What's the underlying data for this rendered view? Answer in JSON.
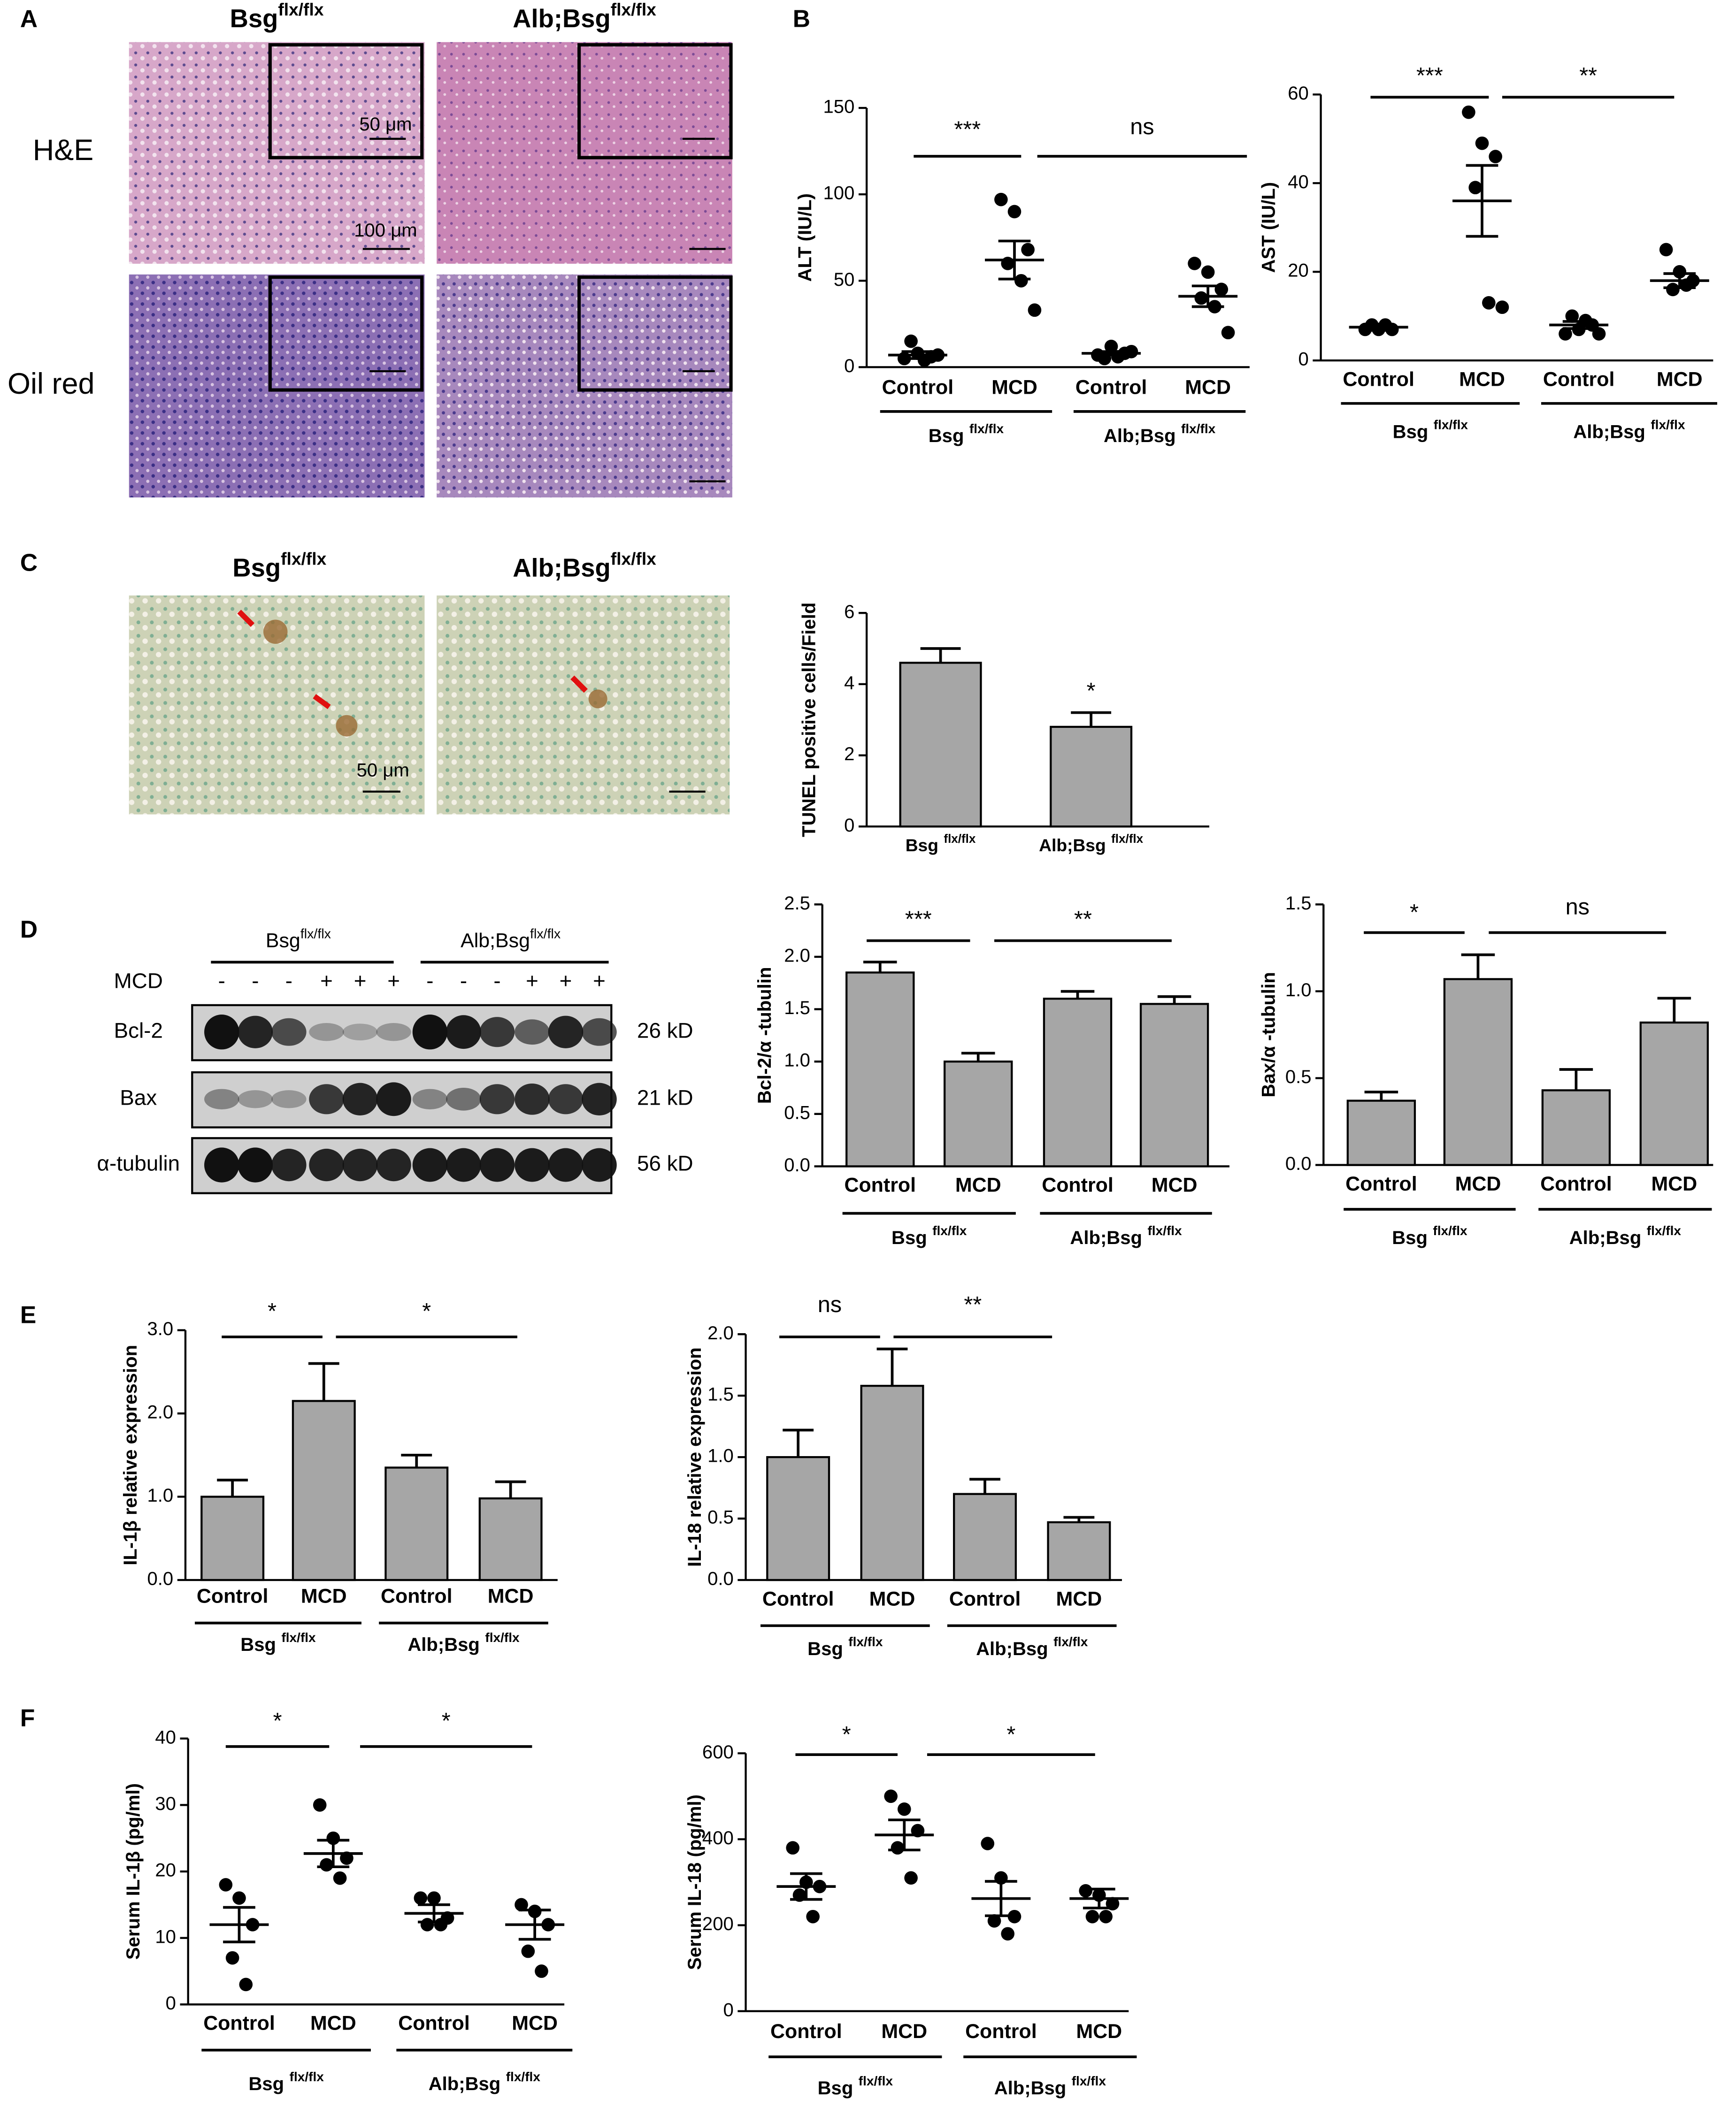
{
  "panels": {
    "A": {
      "label": "A",
      "columns": [
        {
          "name": "Bsg",
          "sup": "flx/flx"
        },
        {
          "name": "Alb;Bsg",
          "sup": "flx/flx"
        }
      ],
      "rows": [
        "H&E",
        "Oil red"
      ],
      "scale_bars": [
        "50 μm",
        "100 μm"
      ]
    },
    "B": {
      "label": "B"
    },
    "C": {
      "label": "C",
      "columns": [
        {
          "name": "Bsg",
          "sup": "flx/flx"
        },
        {
          "name": "Alb;Bsg",
          "sup": "flx/flx"
        }
      ],
      "scale_bar": "50 μm"
    },
    "D": {
      "label": "D",
      "blot": {
        "groups": [
          {
            "name": "Bsg",
            "sup": "flx/flx"
          },
          {
            "name": "Alb;Bsg",
            "sup": "flx/flx"
          }
        ],
        "treatment": "MCD",
        "lanes": [
          "-",
          "-",
          "-",
          "+",
          "+",
          "+",
          "-",
          "-",
          "-",
          "+",
          "+",
          "+"
        ],
        "proteins": [
          {
            "name": "Bcl-2",
            "size": "26 kD"
          },
          {
            "name": "Bax",
            "size": "21 kD"
          },
          {
            "name": "α-tubulin",
            "size": "56 kD"
          }
        ]
      }
    },
    "E": {
      "label": "E"
    },
    "F": {
      "label": "F"
    }
  },
  "chart_data": [
    {
      "type": "scatter",
      "ylabel": "ALT (IU/L)",
      "categories": [
        "Control",
        "MCD",
        "Control",
        "MCD"
      ],
      "groups": [
        {
          "name": "Bsg",
          "sup": "flx/flx"
        },
        {
          "name": "Alb;Bsg",
          "sup": "flx/flx"
        }
      ],
      "points": [
        [
          5,
          8,
          6,
          15,
          4,
          7
        ],
        [
          97,
          90,
          68,
          60,
          50,
          33
        ],
        [
          7,
          12,
          8,
          5,
          6,
          9
        ],
        [
          60,
          55,
          45,
          40,
          35,
          20
        ]
      ],
      "means": [
        7,
        62,
        8,
        41
      ],
      "sems": [
        2,
        11,
        1,
        6
      ],
      "ylim": [
        0,
        150
      ],
      "yticks": [
        0,
        50,
        100,
        150
      ],
      "color": "#000000",
      "significance": [
        "***",
        "ns"
      ]
    },
    {
      "type": "scatter",
      "ylabel": "AST (IU/L)",
      "categories": [
        "Control",
        "MCD",
        "Control",
        "MCD"
      ],
      "groups": [
        {
          "name": "Bsg",
          "sup": "flx/flx"
        },
        {
          "name": "Alb;Bsg",
          "sup": "flx/flx"
        }
      ],
      "points": [
        [
          7,
          7,
          7,
          8,
          8
        ],
        [
          56,
          49,
          46,
          39,
          13,
          12
        ],
        [
          6,
          7,
          8,
          10,
          9,
          6
        ],
        [
          25,
          20,
          18,
          16,
          17
        ]
      ],
      "means": [
        7.5,
        36,
        8,
        18
      ],
      "sems": [
        0.3,
        8,
        0.8,
        1.6
      ],
      "ylim": [
        0,
        60
      ],
      "yticks": [
        0,
        20,
        40,
        60
      ],
      "color": "#000000",
      "significance": [
        "***",
        "**"
      ]
    },
    {
      "type": "bar",
      "ylabel": "TUNEL positive cells/Field",
      "groups": [
        {
          "name": "Bsg",
          "sup": "flx/flx"
        },
        {
          "name": "Alb;Bsg",
          "sup": "flx/flx"
        }
      ],
      "values": [
        4.6,
        2.8
      ],
      "errors": [
        0.4,
        0.4
      ],
      "ylim": [
        0,
        6
      ],
      "yticks": [
        0,
        2,
        4,
        6
      ],
      "color": "#a6a6a6",
      "significance": [
        "*"
      ]
    },
    {
      "type": "bar",
      "ylabel": "Bcl-2/α -tubulin",
      "categories": [
        "Control",
        "MCD",
        "Control",
        "MCD"
      ],
      "groups": [
        {
          "name": "Bsg",
          "sup": "flx/flx"
        },
        {
          "name": "Alb;Bsg",
          "sup": "flx/flx"
        }
      ],
      "values": [
        1.85,
        1.0,
        1.6,
        1.55
      ],
      "errors": [
        0.1,
        0.08,
        0.07,
        0.07
      ],
      "ylim": [
        0,
        2.5
      ],
      "yticks": [
        {
          "value": 0,
          "label": "0.0"
        },
        0.5,
        {
          "value": 1,
          "label": "1.0"
        },
        1.5,
        {
          "value": 2,
          "label": "2.0"
        },
        2.5
      ],
      "color": "#a6a6a6",
      "significance": [
        "***",
        "**"
      ]
    },
    {
      "type": "bar",
      "ylabel": "Bax/α -tubulin",
      "categories": [
        "Control",
        "MCD",
        "Control",
        "MCD"
      ],
      "groups": [
        {
          "name": "Bsg",
          "sup": "flx/flx"
        },
        {
          "name": "Alb;Bsg",
          "sup": "flx/flx"
        }
      ],
      "values": [
        0.37,
        1.07,
        0.43,
        0.82
      ],
      "errors": [
        0.05,
        0.14,
        0.12,
        0.14
      ],
      "ylim": [
        0,
        1.5
      ],
      "yticks": [
        {
          "value": 0,
          "label": "0.0"
        },
        0.5,
        {
          "value": 1,
          "label": "1.0"
        },
        1.5
      ],
      "color": "#a6a6a6",
      "significance": [
        "*",
        "ns"
      ]
    },
    {
      "type": "bar",
      "ylabel": "IL-1β relative expression",
      "categories": [
        "Control",
        "MCD",
        "Control",
        "MCD"
      ],
      "groups": [
        {
          "name": "Bsg",
          "sup": "flx/flx"
        },
        {
          "name": "Alb;Bsg",
          "sup": "flx/flx"
        }
      ],
      "values": [
        1.0,
        2.15,
        1.35,
        0.98
      ],
      "errors": [
        0.2,
        0.45,
        0.15,
        0.2
      ],
      "ylim": [
        0,
        3
      ],
      "yticks": [
        {
          "value": 0,
          "label": "0.0"
        },
        {
          "value": 1,
          "label": "1.0"
        },
        {
          "value": 2,
          "label": "2.0"
        },
        {
          "value": 3,
          "label": "3.0"
        }
      ],
      "color": "#a6a6a6",
      "significance": [
        "*",
        "*"
      ]
    },
    {
      "type": "bar",
      "ylabel": "IL-18 relative expression",
      "categories": [
        "Control",
        "MCD",
        "Control",
        "MCD"
      ],
      "groups": [
        {
          "name": "Bsg",
          "sup": "flx/flx"
        },
        {
          "name": "Alb;Bsg",
          "sup": "flx/flx"
        }
      ],
      "values": [
        1.0,
        1.58,
        0.7,
        0.47
      ],
      "errors": [
        0.22,
        0.3,
        0.12,
        0.04
      ],
      "ylim": [
        0,
        2
      ],
      "yticks": [
        {
          "value": 0,
          "label": "0.0"
        },
        0.5,
        {
          "value": 1,
          "label": "1.0"
        },
        1.5,
        {
          "value": 2,
          "label": "2.0"
        }
      ],
      "color": "#a6a6a6",
      "significance": [
        "ns",
        "**"
      ]
    },
    {
      "type": "scatter",
      "ylabel": "Serum IL-1β (pg/ml)",
      "categories": [
        "Control",
        "MCD",
        "Control",
        "MCD"
      ],
      "groups": [
        {
          "name": "Bsg",
          "sup": "flx/flx"
        },
        {
          "name": "Alb;Bsg",
          "sup": "flx/flx"
        }
      ],
      "points": [
        [
          18,
          16,
          12,
          7,
          3
        ],
        [
          30,
          25,
          22,
          21,
          19
        ],
        [
          16,
          16,
          13,
          12,
          12
        ],
        [
          15,
          14,
          12,
          8,
          5
        ]
      ],
      "means": [
        12,
        22.7,
        13.7,
        12
      ],
      "sems": [
        2.6,
        2,
        1.3,
        2.2
      ],
      "ylim": [
        0,
        40
      ],
      "yticks": [
        0,
        10,
        20,
        30,
        40
      ],
      "color": "#000000",
      "significance": [
        "*",
        "*"
      ]
    },
    {
      "type": "scatter",
      "ylabel": "Serum IL-18 (pg/ml)",
      "categories": [
        "Control",
        "MCD",
        "Control",
        "MCD"
      ],
      "groups": [
        {
          "name": "Bsg",
          "sup": "flx/flx"
        },
        {
          "name": "Alb;Bsg",
          "sup": "flx/flx"
        }
      ],
      "points": [
        [
          380,
          300,
          290,
          270,
          220
        ],
        [
          500,
          470,
          420,
          380,
          310
        ],
        [
          390,
          310,
          220,
          210,
          180
        ],
        [
          280,
          270,
          250,
          220,
          220
        ]
      ],
      "means": [
        290,
        410,
        262,
        262
      ],
      "sems": [
        30,
        35,
        40,
        22
      ],
      "ylim": [
        0,
        600
      ],
      "yticks": [
        0,
        200,
        400,
        600
      ],
      "color": "#000000",
      "significance": [
        "*",
        "*"
      ]
    }
  ]
}
